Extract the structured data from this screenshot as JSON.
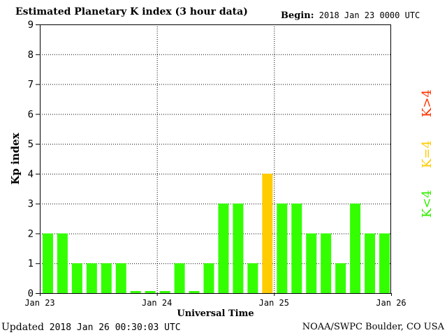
{
  "header": {
    "title": "Estimated Planetary K index (3 hour data)",
    "begin_label": "Begin:",
    "begin_value": "2018 Jan 23 0000 UTC"
  },
  "footer": {
    "updated_label": "Updated",
    "updated_value": "2018 Jan 26 00:30:03 UTC",
    "credit": "NOAA/SWPC Boulder, CO USA"
  },
  "legend": {
    "low": "K<4",
    "equal": "K=4",
    "high": "K>4"
  },
  "colors": {
    "low": "#33ff00",
    "equal": "#ffcc00",
    "high": "#ff3300"
  },
  "chart_data": {
    "type": "bar",
    "xlabel": "Universal Time",
    "ylabel": "Kp index",
    "ylim": [
      0,
      9
    ],
    "yticks": [
      "0",
      "1",
      "2",
      "3",
      "4",
      "5",
      "6",
      "7",
      "8",
      "9"
    ],
    "xticks": [
      "Jan 23",
      "Jan 24",
      "Jan 25",
      "Jan 26"
    ],
    "grid": true,
    "legend_position": "right",
    "values": [
      2,
      2,
      1,
      1,
      1,
      1,
      0,
      0,
      0,
      1,
      0,
      1,
      3,
      3,
      1,
      4,
      3,
      3,
      2,
      2,
      1,
      3,
      2,
      2
    ]
  }
}
